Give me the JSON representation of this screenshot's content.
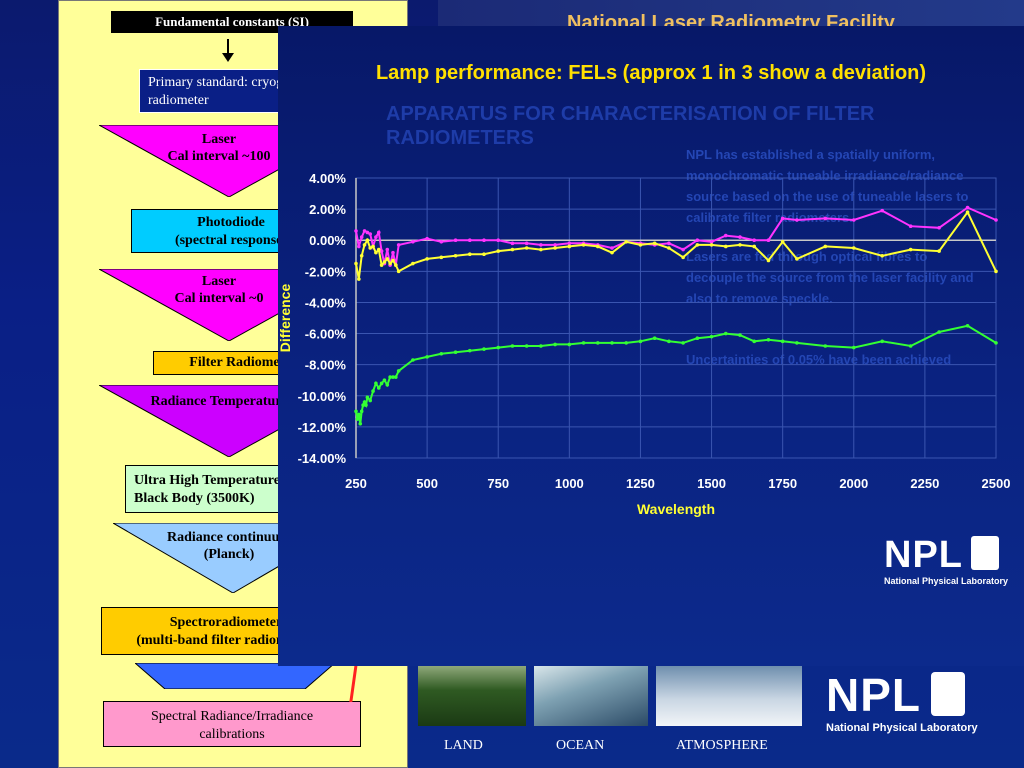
{
  "flowchart": {
    "title": "Fundamental constants (SI)",
    "primary": "Primary standard: cryogenic radiometer",
    "laser1": {
      "line1": "Laser",
      "line2": "Cal interval ~100"
    },
    "photodiode": {
      "line1": "Photodiode",
      "line2": "(spectral response)"
    },
    "laser2": {
      "line1": "Laser",
      "line2": "Cal interval ~0"
    },
    "filter_radiometer": "Filter Radiometer",
    "radiance_temp": "Radiance Temperature",
    "black_body": {
      "line1": "Ultra High Temperature",
      "line2": "Black Body (3500K)"
    },
    "radiance_continuum": {
      "line1": "Radiance continuum",
      "line2": "(Planck)"
    },
    "spectroradiometer": {
      "line1": "Spectroradiometer",
      "line2": "(multi-band filter radiometer)"
    },
    "spectral": {
      "line1": "Spectral Radiance/Irradiance",
      "line2": "calibrations"
    }
  },
  "background": {
    "title": "National Laser Radiometry Facility",
    "heading": "APPARATUS FOR CHARACTERISATION OF FILTER RADIOMETERS",
    "body1": "NPL has established a spatially uniform, monochromatic tuneable irradiance/radiance source based on the use of tuneable lasers to calibrate filter radiometers.",
    "body2": "Lasers are fed through optical fibres to decouple the source from the laser facility and also to remove speckle.",
    "body3": "Uncertainties of 0.05% have been achieved"
  },
  "photos": {
    "land": "LAND",
    "ocean": "OCEAN",
    "atmosphere": "ATMOSPHERE"
  },
  "logo": {
    "name": "NPL",
    "subtitle": "National Physical Laboratory"
  },
  "chart_data": {
    "type": "line",
    "title": "Lamp performance: FELs  (approx 1 in 3 show a deviation)",
    "xlabel": "Wavelength",
    "ylabel": "Difference",
    "xlim": [
      250,
      2500
    ],
    "ylim": [
      -14,
      4
    ],
    "x_ticks": [
      "250",
      "500",
      "750",
      "1000",
      "1250",
      "1500",
      "1750",
      "2000",
      "2250",
      "2500"
    ],
    "y_ticks": [
      "4.00%",
      "2.00%",
      "0.00%",
      "-2.00%",
      "-4.00%",
      "-6.00%",
      "-8.00%",
      "-10.00%",
      "-12.00%",
      "-14.00%"
    ],
    "grid": true,
    "colors": {
      "magenta": "#ff33ff",
      "yellow": "#ffff33",
      "green": "#33ff33",
      "axis": "#c8c8c8",
      "grid": "#3a55b0"
    },
    "series": [
      {
        "color": "magenta",
        "x": [
          250,
          260,
          270,
          280,
          290,
          300,
          310,
          320,
          330,
          340,
          350,
          360,
          370,
          380,
          390,
          400,
          450,
          500,
          550,
          600,
          650,
          700,
          750,
          800,
          850,
          900,
          950,
          1000,
          1050,
          1100,
          1150,
          1200,
          1250,
          1300,
          1350,
          1400,
          1450,
          1500,
          1550,
          1600,
          1650,
          1700,
          1750,
          1800,
          1900,
          2000,
          2100,
          2200,
          2300,
          2400,
          2500
        ],
        "y": [
          0.6,
          -0.4,
          0.2,
          0.6,
          0.5,
          0.4,
          -0.4,
          0.2,
          0.5,
          -0.7,
          -1.5,
          -0.6,
          -1.6,
          -0.8,
          -1.6,
          -0.3,
          -0.1,
          0.1,
          -0.1,
          0.0,
          0.0,
          0.0,
          0.0,
          -0.2,
          -0.2,
          -0.3,
          -0.3,
          -0.2,
          -0.2,
          -0.3,
          -0.5,
          -0.1,
          -0.2,
          -0.3,
          -0.2,
          -0.6,
          0.0,
          -0.1,
          0.3,
          0.2,
          0.0,
          0.0,
          1.4,
          1.3,
          1.4,
          1.3,
          1.9,
          0.9,
          0.8,
          2.1,
          1.3
        ]
      },
      {
        "color": "yellow",
        "x": [
          250,
          260,
          270,
          280,
          290,
          300,
          310,
          320,
          330,
          340,
          350,
          360,
          370,
          380,
          390,
          400,
          450,
          500,
          550,
          600,
          650,
          700,
          750,
          800,
          850,
          900,
          950,
          1000,
          1050,
          1100,
          1150,
          1200,
          1250,
          1300,
          1350,
          1400,
          1450,
          1500,
          1550,
          1600,
          1650,
          1700,
          1750,
          1800,
          1900,
          2000,
          2100,
          2200,
          2300,
          2400,
          2500
        ],
        "y": [
          -1.5,
          -2.5,
          -1.0,
          -0.3,
          0.0,
          -0.5,
          -0.4,
          -0.8,
          -0.6,
          -1.6,
          -1.4,
          -1.2,
          -1.5,
          -1.3,
          -1.6,
          -2.0,
          -1.5,
          -1.2,
          -1.1,
          -1.0,
          -0.9,
          -0.9,
          -0.7,
          -0.6,
          -0.5,
          -0.6,
          -0.5,
          -0.4,
          -0.3,
          -0.4,
          -0.8,
          -0.1,
          -0.3,
          -0.2,
          -0.5,
          -1.1,
          -0.3,
          -0.3,
          -0.4,
          -0.3,
          -0.4,
          -1.3,
          -0.1,
          -1.2,
          -0.4,
          -0.5,
          -1.0,
          -0.6,
          -0.7,
          1.8,
          -2.0
        ]
      },
      {
        "color": "green",
        "x": [
          250,
          255,
          260,
          265,
          270,
          275,
          280,
          285,
          290,
          300,
          310,
          320,
          330,
          340,
          350,
          360,
          370,
          380,
          390,
          400,
          450,
          500,
          550,
          600,
          650,
          700,
          750,
          800,
          850,
          900,
          950,
          1000,
          1050,
          1100,
          1150,
          1200,
          1250,
          1300,
          1350,
          1400,
          1450,
          1500,
          1550,
          1600,
          1650,
          1700,
          1750,
          1800,
          1900,
          2000,
          2100,
          2200,
          2300,
          2400,
          2500
        ],
        "y": [
          -11.0,
          -11.5,
          -11.2,
          -11.8,
          -11.0,
          -10.6,
          -10.4,
          -10.6,
          -10.1,
          -10.3,
          -9.7,
          -9.2,
          -9.5,
          -9.2,
          -9.0,
          -9.3,
          -8.8,
          -8.8,
          -8.8,
          -8.4,
          -7.7,
          -7.5,
          -7.3,
          -7.2,
          -7.1,
          -7.0,
          -6.9,
          -6.8,
          -6.8,
          -6.8,
          -6.7,
          -6.7,
          -6.6,
          -6.6,
          -6.6,
          -6.6,
          -6.5,
          -6.3,
          -6.5,
          -6.6,
          -6.3,
          -6.2,
          -6.0,
          -6.1,
          -6.5,
          -6.4,
          -6.5,
          -6.6,
          -6.8,
          -6.9,
          -6.5,
          -6.8,
          -5.9,
          -5.5,
          -6.6
        ]
      }
    ]
  }
}
